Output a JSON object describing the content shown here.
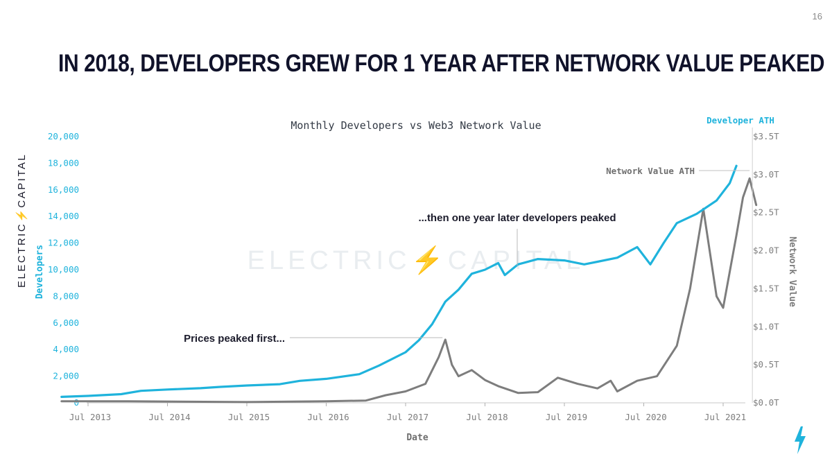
{
  "slide_number": "16",
  "headline": "IN 2018, DEVELOPERS GREW FOR 1 YEAR AFTER NETWORK VALUE PEAKED",
  "brand": "ELECTRIC⚡CAPITAL",
  "watermark": "ELECTRIC⚡CAPITAL",
  "colors": {
    "developers": "#1fb3dc",
    "network_value": "#7d7d7d",
    "headline": "#10122a",
    "accent": "#1fb3dc"
  },
  "icons": {
    "bolt": "bolt-icon"
  },
  "chart_data": {
    "type": "line",
    "title": "Monthly Developers vs Web3 Network Value",
    "xlabel": "Date",
    "ylabel_left": "Developers",
    "ylabel_right": "Network Value",
    "x_ticks": [
      "Jul 2013",
      "Jul 2014",
      "Jul 2015",
      "Jul 2016",
      "Jul 2017",
      "Jul 2018",
      "Jul 2019",
      "Jul 2020",
      "Jul 2021"
    ],
    "y_left_ticks": [
      "0",
      "2,000",
      "4,000",
      "6,000",
      "8,000",
      "10,000",
      "12,000",
      "14,000",
      "16,000",
      "18,000",
      "20,000"
    ],
    "y_right_ticks": [
      "$0.0T",
      "$0.5T",
      "$1.0T",
      "$1.5T",
      "$2.0T",
      "$2.5T",
      "$3.0T",
      "$3.5T"
    ],
    "ylim_left": [
      0,
      20000
    ],
    "ylim_right": [
      0,
      3.5
    ],
    "grid": false,
    "series": [
      {
        "name": "Developers",
        "axis": "left",
        "points": [
          [
            "2013-03",
            450
          ],
          [
            "2013-07",
            520
          ],
          [
            "2013-12",
            650
          ],
          [
            "2014-03",
            900
          ],
          [
            "2014-07",
            1000
          ],
          [
            "2014-12",
            1100
          ],
          [
            "2015-03",
            1200
          ],
          [
            "2015-07",
            1300
          ],
          [
            "2015-12",
            1400
          ],
          [
            "2016-03",
            1650
          ],
          [
            "2016-07",
            1800
          ],
          [
            "2016-12",
            2150
          ],
          [
            "2017-03",
            2800
          ],
          [
            "2017-07",
            3800
          ],
          [
            "2017-09",
            4700
          ],
          [
            "2017-11",
            5900
          ],
          [
            "2018-01",
            7600
          ],
          [
            "2018-03",
            8500
          ],
          [
            "2018-05",
            9700
          ],
          [
            "2018-07",
            10000
          ],
          [
            "2018-09",
            10500
          ],
          [
            "2018-10",
            9600
          ],
          [
            "2018-12",
            10400
          ],
          [
            "2019-03",
            10800
          ],
          [
            "2019-07",
            10700
          ],
          [
            "2019-10",
            10400
          ],
          [
            "2019-12",
            10600
          ],
          [
            "2020-03",
            10900
          ],
          [
            "2020-06",
            11700
          ],
          [
            "2020-08",
            10400
          ],
          [
            "2020-10",
            12000
          ],
          [
            "2020-12",
            13500
          ],
          [
            "2021-03",
            14200
          ],
          [
            "2021-06",
            15200
          ],
          [
            "2021-08",
            16500
          ],
          [
            "2021-09",
            17800
          ]
        ]
      },
      {
        "name": "Network Value",
        "axis": "right",
        "points": [
          [
            "2013-03",
            0.02
          ],
          [
            "2014-01",
            0.02
          ],
          [
            "2015-07",
            0.01
          ],
          [
            "2016-07",
            0.02
          ],
          [
            "2017-01",
            0.03
          ],
          [
            "2017-04",
            0.1
          ],
          [
            "2017-07",
            0.15
          ],
          [
            "2017-10",
            0.25
          ],
          [
            "2017-12",
            0.6
          ],
          [
            "2018-01",
            0.83
          ],
          [
            "2018-02",
            0.5
          ],
          [
            "2018-03",
            0.35
          ],
          [
            "2018-05",
            0.43
          ],
          [
            "2018-07",
            0.3
          ],
          [
            "2018-09",
            0.22
          ],
          [
            "2018-12",
            0.13
          ],
          [
            "2019-03",
            0.14
          ],
          [
            "2019-06",
            0.33
          ],
          [
            "2019-09",
            0.25
          ],
          [
            "2019-12",
            0.19
          ],
          [
            "2020-02",
            0.29
          ],
          [
            "2020-03",
            0.15
          ],
          [
            "2020-06",
            0.29
          ],
          [
            "2020-09",
            0.35
          ],
          [
            "2020-12",
            0.75
          ],
          [
            "2021-02",
            1.5
          ],
          [
            "2021-04",
            2.55
          ],
          [
            "2021-06",
            1.4
          ],
          [
            "2021-07",
            1.25
          ],
          [
            "2021-09",
            2.2
          ],
          [
            "2021-10",
            2.7
          ],
          [
            "2021-11",
            2.95
          ],
          [
            "2021-12",
            2.6
          ]
        ]
      }
    ],
    "annotations": [
      {
        "text": "Prices peaked first...",
        "at": "2018-01"
      },
      {
        "text": "...then one year later developers peaked",
        "at": "2019-01"
      },
      {
        "text": "Network Value ATH",
        "at": "2021-11"
      },
      {
        "text": "Developer ATH",
        "at": "2021-11"
      }
    ]
  }
}
